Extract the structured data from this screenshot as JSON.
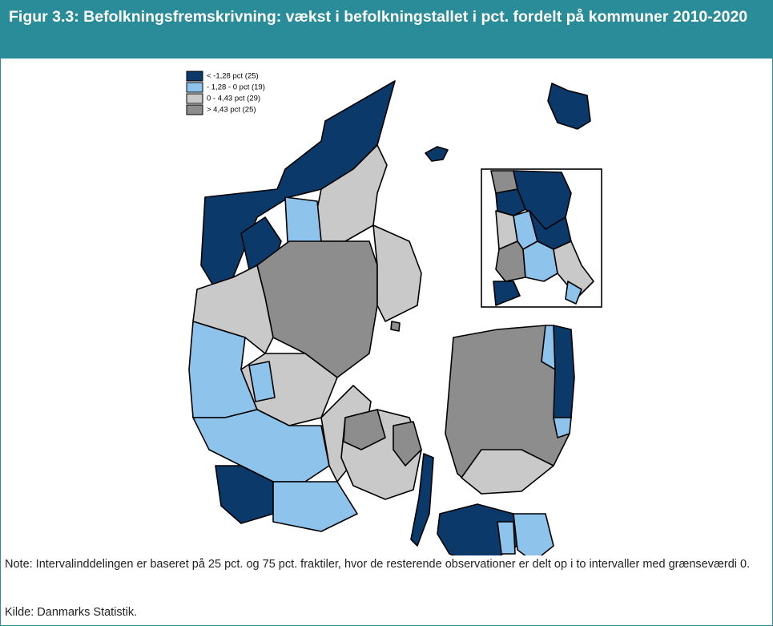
{
  "header": {
    "title": "Figur 3.3: Befolkningsfremskrivning: vækst i befolkningstallet i pct. fordelt på kommuner 2010-2020"
  },
  "legend": {
    "items": [
      {
        "label": "< -1,28 pct (25)",
        "color": "#0b3a6a"
      },
      {
        "label": "- 1,28 - 0 pct (19)",
        "color": "#8ec3ec"
      },
      {
        "label": "0 - 4,43 pct (29)",
        "color": "#c9c9c9"
      },
      {
        "label": "> 4,43 pct (25)",
        "color": "#8d8d8d"
      }
    ]
  },
  "footer": {
    "note": "Note: Intervalinddelingen er baseret på 25 pct. og 75 pct. fraktiler, hvor de resterende observationer er delt op i to intervaller med grænseværdi 0.",
    "source": "Kilde: Danmarks Statistik."
  }
}
